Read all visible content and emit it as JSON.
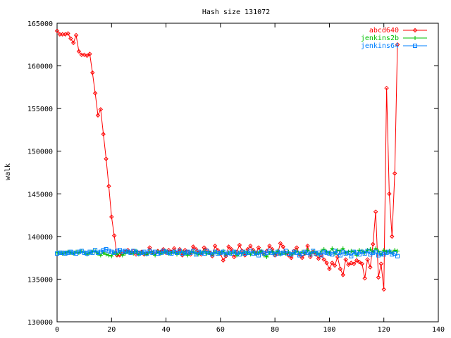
{
  "chart_data": {
    "type": "line",
    "title": "Hash size 131072",
    "xlabel": "",
    "ylabel": "walk",
    "xlim": [
      0,
      140
    ],
    "ylim": [
      130000,
      165000
    ],
    "xticks": [
      "0",
      "20",
      "40",
      "60",
      "80",
      "100",
      "120",
      "140"
    ],
    "yticks": [
      "130000",
      "135000",
      "140000",
      "145000",
      "150000",
      "155000",
      "160000",
      "165000"
    ],
    "grid": false,
    "legend_position": "top-right",
    "series": [
      {
        "name": "abcd640",
        "color": "#ff0000",
        "marker": "diamond",
        "x": [
          0,
          1,
          2,
          3,
          4,
          5,
          6,
          7,
          8,
          9,
          10,
          11,
          12,
          13,
          14,
          15,
          16,
          17,
          18,
          19,
          20,
          21,
          22,
          23,
          24,
          25,
          26,
          27,
          28,
          29,
          30,
          31,
          32,
          33,
          34,
          35,
          36,
          37,
          38,
          39,
          40,
          41,
          42,
          43,
          44,
          45,
          46,
          47,
          48,
          49,
          50,
          51,
          52,
          53,
          54,
          55,
          56,
          57,
          58,
          59,
          60,
          61,
          62,
          63,
          64,
          65,
          66,
          67,
          68,
          69,
          70,
          71,
          72,
          73,
          74,
          75,
          76,
          77,
          78,
          79,
          80,
          81,
          82,
          83,
          84,
          85,
          86,
          87,
          88,
          89,
          90,
          91,
          92,
          93,
          94,
          95,
          96,
          97,
          98,
          99,
          100,
          101,
          102,
          103,
          104,
          105,
          106,
          107,
          108,
          109,
          110,
          111,
          112,
          113,
          114,
          115,
          116,
          117,
          118,
          119,
          120,
          121,
          122,
          123,
          124,
          125
        ],
        "y": [
          164100,
          163700,
          163700,
          163700,
          163800,
          163200,
          162700,
          163600,
          161700,
          161300,
          161300,
          161200,
          161400,
          159200,
          156800,
          154200,
          154900,
          152000,
          149100,
          145900,
          142300,
          140100,
          137800,
          137800,
          138000,
          138200,
          138400,
          138100,
          138300,
          137900,
          138100,
          138200,
          137900,
          138000,
          138700,
          138100,
          138000,
          138300,
          138200,
          138500,
          138100,
          138400,
          138200,
          138600,
          138100,
          138500,
          137800,
          138400,
          138200,
          137900,
          138800,
          138500,
          138100,
          137900,
          138700,
          138400,
          138100,
          137700,
          138900,
          138400,
          138000,
          137200,
          137700,
          138800,
          138500,
          137600,
          138200,
          139000,
          138300,
          137800,
          138500,
          138900,
          138400,
          138000,
          138700,
          138200,
          137900,
          138300,
          138900,
          138500,
          137800,
          138000,
          139200,
          138800,
          138100,
          137800,
          137500,
          138300,
          138700,
          137900,
          137500,
          138000,
          138900,
          137600,
          138200,
          137900,
          137400,
          137800,
          137300,
          136900,
          136200,
          136900,
          136600,
          137600,
          136200,
          135500,
          137300,
          136700,
          136900,
          136800,
          137200,
          137000,
          136800,
          135100,
          137300,
          136400,
          139100,
          142900,
          135200,
          136800,
          133800,
          157400,
          145000,
          140000,
          147400,
          162500
        ]
      },
      {
        "name": "jenkins2b",
        "color": "#00c000",
        "marker": "plus",
        "x": [
          0,
          1,
          2,
          3,
          4,
          5,
          6,
          7,
          8,
          9,
          10,
          11,
          12,
          13,
          14,
          15,
          16,
          17,
          18,
          19,
          20,
          21,
          22,
          23,
          24,
          25,
          26,
          27,
          28,
          29,
          30,
          31,
          32,
          33,
          34,
          35,
          36,
          37,
          38,
          39,
          40,
          41,
          42,
          43,
          44,
          45,
          46,
          47,
          48,
          49,
          50,
          51,
          52,
          53,
          54,
          55,
          56,
          57,
          58,
          59,
          60,
          61,
          62,
          63,
          64,
          65,
          66,
          67,
          68,
          69,
          70,
          71,
          72,
          73,
          74,
          75,
          76,
          77,
          78,
          79,
          80,
          81,
          82,
          83,
          84,
          85,
          86,
          87,
          88,
          89,
          90,
          91,
          92,
          93,
          94,
          95,
          96,
          97,
          98,
          99,
          100,
          101,
          102,
          103,
          104,
          105,
          106,
          107,
          108,
          109,
          110,
          111,
          112,
          113,
          114,
          115,
          116,
          117,
          118,
          119,
          120,
          121,
          122,
          123,
          124,
          125
        ],
        "y": [
          138100,
          138100,
          138000,
          138100,
          138200,
          138100,
          138000,
          138200,
          138100,
          138300,
          138100,
          137900,
          138100,
          138200,
          138300,
          138000,
          137800,
          138100,
          137900,
          137800,
          137700,
          138100,
          137900,
          138200,
          137800,
          138000,
          138200,
          138100,
          138000,
          138300,
          137900,
          138100,
          138000,
          137900,
          138200,
          138100,
          137800,
          138200,
          138000,
          138100,
          138300,
          138000,
          138100,
          138200,
          137900,
          138100,
          138200,
          138000,
          137800,
          138100,
          138200,
          138000,
          137900,
          138100,
          138300,
          138000,
          138100,
          137900,
          138200,
          138000,
          138100,
          138300,
          137900,
          138100,
          138000,
          138200,
          137800,
          138100,
          138000,
          138200,
          138100,
          137900,
          138200,
          138000,
          138100,
          138300,
          137800,
          137600,
          138100,
          138200,
          138000,
          138300,
          137900,
          138100,
          138000,
          138200,
          137900,
          138100,
          138300,
          138000,
          138200,
          138100,
          138400,
          138000,
          138200,
          138100,
          137900,
          138300,
          138500,
          138200,
          138100,
          138600,
          138000,
          138400,
          138300,
          138600,
          138100,
          138200,
          138300,
          138200,
          137800,
          138400,
          138300,
          138100,
          138400,
          138500,
          138200,
          138600,
          138300,
          137900,
          138400,
          138200,
          138300,
          138100,
          138400,
          138300
        ]
      },
      {
        "name": "jenkins64",
        "color": "#0080ff",
        "marker": "square",
        "x": [
          0,
          1,
          2,
          3,
          4,
          5,
          6,
          7,
          8,
          9,
          10,
          11,
          12,
          13,
          14,
          15,
          16,
          17,
          18,
          19,
          20,
          21,
          22,
          23,
          24,
          25,
          26,
          27,
          28,
          29,
          30,
          31,
          32,
          33,
          34,
          35,
          36,
          37,
          38,
          39,
          40,
          41,
          42,
          43,
          44,
          45,
          46,
          47,
          48,
          49,
          50,
          51,
          52,
          53,
          54,
          55,
          56,
          57,
          58,
          59,
          60,
          61,
          62,
          63,
          64,
          65,
          66,
          67,
          68,
          69,
          70,
          71,
          72,
          73,
          74,
          75,
          76,
          77,
          78,
          79,
          80,
          81,
          82,
          83,
          84,
          85,
          86,
          87,
          88,
          89,
          90,
          91,
          92,
          93,
          94,
          95,
          96,
          97,
          98,
          99,
          100,
          101,
          102,
          103,
          104,
          105,
          106,
          107,
          108,
          109,
          110,
          111,
          112,
          113,
          114,
          115,
          116,
          117,
          118,
          119,
          120,
          121,
          122,
          123,
          124,
          125
        ],
        "y": [
          138000,
          138100,
          138100,
          138000,
          138100,
          138200,
          138100,
          138000,
          138200,
          138300,
          138100,
          138000,
          138200,
          138100,
          138400,
          138100,
          138200,
          138400,
          138500,
          138300,
          138200,
          138100,
          138300,
          138400,
          138200,
          138300,
          138200,
          138100,
          138300,
          138200,
          138000,
          138100,
          138200,
          138000,
          138300,
          138100,
          138200,
          138000,
          138100,
          138300,
          138200,
          138100,
          138000,
          138200,
          138100,
          138300,
          138000,
          138100,
          138200,
          138100,
          138300,
          137900,
          138200,
          138100,
          138000,
          138300,
          138100,
          137900,
          138200,
          138000,
          138100,
          138200,
          137900,
          138100,
          138000,
          138200,
          138100,
          137900,
          138200,
          138000,
          138100,
          138300,
          138000,
          138100,
          137800,
          138200,
          138000,
          138100,
          138300,
          138100,
          137900,
          138200,
          138000,
          138100,
          138300,
          138000,
          137900,
          138200,
          138100,
          137800,
          138000,
          138200,
          138100,
          137900,
          138300,
          138000,
          138100,
          137800,
          138200,
          138100,
          138000,
          137900,
          138300,
          138100,
          137800,
          138200,
          138000,
          138100,
          137700,
          138200,
          138100,
          137900,
          138200,
          138000,
          138300,
          137900,
          138100,
          138200,
          137800,
          138000,
          137900,
          138100,
          138200,
          137900,
          138000,
          137700
        ]
      }
    ]
  }
}
